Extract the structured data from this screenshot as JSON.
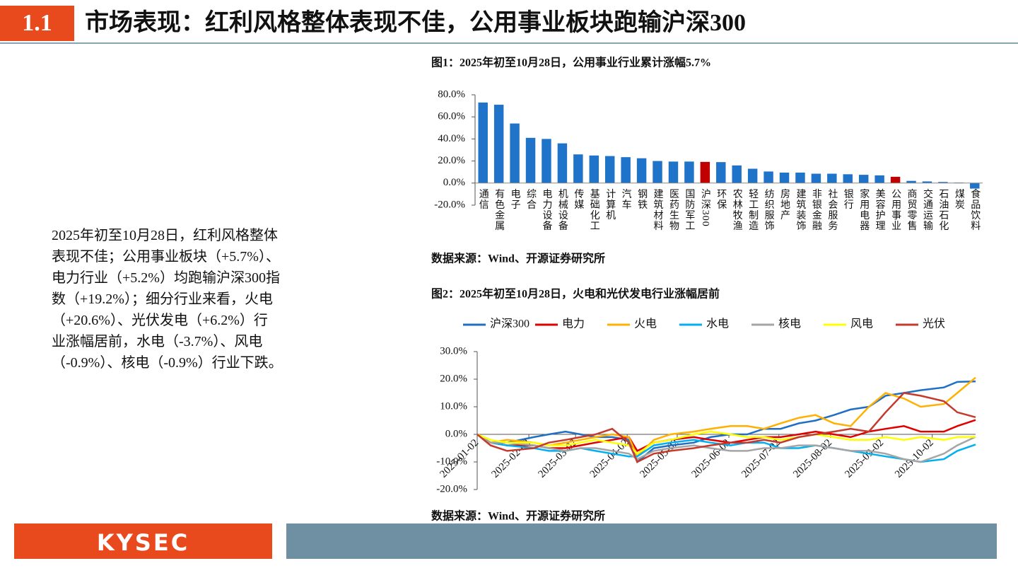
{
  "header": {
    "section": "1.1",
    "title": "市场表现：红利风格整体表现不佳，公用事业板块跑输沪深300"
  },
  "body_text": [
    "2025年初至10月28日，红利风格整体",
    "表现不佳；公用事业板块（+5.7%）、",
    "电力行业（+5.2%）均跑输沪深300指",
    "数（+19.2%）；细分行业来看，火电",
    "（+20.6%）、光伏发电（+6.2%）行",
    "业涨幅居前，水电（-3.7%）、风电",
    "（-0.9%）、核电（-0.9%）行业下跌。"
  ],
  "chart_data": [
    {
      "type": "bar",
      "title": "图1：2025年初至10月28日，公用事业行业累计涨幅5.7%",
      "source": "数据来源：Wind、开源证券研究所",
      "categories": [
        "通信",
        "有色金属",
        "电子",
        "综合",
        "电力设备",
        "机械设备",
        "传媒",
        "基础化工",
        "计算机",
        "汽车",
        "钢铁",
        "建筑材料",
        "医药生物",
        "国防军工",
        "沪深300",
        "环保",
        "农林牧渔",
        "轻工制造",
        "纺织服饰",
        "房地产",
        "建筑装饰",
        "非银金融",
        "社会服务",
        "银行",
        "家用电器",
        "美容护理",
        "公用事业",
        "商贸零售",
        "交通运输",
        "石油石化",
        "煤炭",
        "食品饮料"
      ],
      "values": [
        73,
        71,
        54,
        41,
        40,
        36,
        26,
        25,
        24.5,
        23.5,
        22.5,
        20,
        19.5,
        19.5,
        19.2,
        19,
        16,
        13,
        10.5,
        9.5,
        9.5,
        8.5,
        8.5,
        8,
        7.5,
        7,
        5.7,
        2,
        1.5,
        1,
        0.5,
        -5
      ],
      "colors": [
        "#1f74c9",
        "#1f74c9",
        "#1f74c9",
        "#1f74c9",
        "#1f74c9",
        "#1f74c9",
        "#1f74c9",
        "#1f74c9",
        "#1f74c9",
        "#1f74c9",
        "#1f74c9",
        "#1f74c9",
        "#1f74c9",
        "#1f74c9",
        "#c00000",
        "#1f74c9",
        "#1f74c9",
        "#1f74c9",
        "#1f74c9",
        "#1f74c9",
        "#1f74c9",
        "#1f74c9",
        "#1f74c9",
        "#1f74c9",
        "#1f74c9",
        "#1f74c9",
        "#c00000",
        "#1f74c9",
        "#1f74c9",
        "#1f74c9",
        "#1f74c9",
        "#1f74c9"
      ],
      "ylim": [
        -20,
        80
      ],
      "yticks": [
        {
          "value": -20,
          "label": "-20.0%"
        },
        {
          "value": 0,
          "label": "0.0%"
        },
        {
          "value": 20,
          "label": "20.0%"
        },
        {
          "value": 40,
          "label": "40.0%"
        },
        {
          "value": 60,
          "label": "60.0%"
        },
        {
          "value": 80,
          "label": "80.0%"
        }
      ]
    },
    {
      "type": "line",
      "title": "图2：2025年初至10月28日，火电和光伏发电行业涨幅居前",
      "source": "数据来源：Wind、开源证券研究所",
      "legend": "top",
      "x": [
        "2025-01-02",
        "2025-01-10",
        "2025-01-20",
        "2025-02-05",
        "2025-02-14",
        "2025-02-24",
        "2025-03-05",
        "2025-03-14",
        "2025-03-24",
        "2025-04-03",
        "2025-04-08",
        "2025-04-18",
        "2025-04-28",
        "2025-05-12",
        "2025-05-22",
        "2025-06-03",
        "2025-06-13",
        "2025-06-23",
        "2025-07-03",
        "2025-07-14",
        "2025-07-24",
        "2025-08-04",
        "2025-08-14",
        "2025-08-25",
        "2025-09-04",
        "2025-09-15",
        "2025-09-25",
        "2025-10-09",
        "2025-10-17",
        "2025-10-28"
      ],
      "xlim": [
        "2025-01-02",
        "2025-10-28"
      ],
      "xticks": [
        "2025-01-02",
        "2025-02-02",
        "2025-03-02",
        "2025-04-02",
        "2025-05-02",
        "2025-06-02",
        "2025-07-02",
        "2025-08-02",
        "2025-09-02",
        "2025-10-02"
      ],
      "ylim": [
        -20,
        30
      ],
      "yticks": [
        {
          "value": -20,
          "label": "-20.0%"
        },
        {
          "value": -10,
          "label": "-10.0%"
        },
        {
          "value": 0,
          "label": "0.0%"
        },
        {
          "value": 10,
          "label": "10.0%"
        },
        {
          "value": 20,
          "label": "20.0%"
        },
        {
          "value": 30,
          "label": "30.0%"
        }
      ],
      "series": [
        {
          "name": "沪深300",
          "color": "#1f6fc5",
          "values": [
            0,
            -3,
            -3,
            -1,
            0,
            1,
            0,
            -1,
            -1,
            -2,
            -10,
            -5,
            -4,
            -3,
            -1,
            0,
            0,
            2,
            2,
            4,
            5,
            7,
            9,
            10,
            14,
            15,
            16,
            17,
            19,
            19.2
          ]
        },
        {
          "name": "电力",
          "color": "#e00000",
          "values": [
            0,
            -3,
            -4,
            -4,
            -5,
            -5,
            -4,
            -3,
            -2,
            -1,
            -6,
            -3,
            -2,
            -1,
            -2,
            -3,
            -2,
            -1,
            -1,
            0,
            1,
            0,
            -1,
            1,
            2,
            3,
            1,
            1,
            3,
            5.2
          ]
        },
        {
          "name": "火电",
          "color": "#ffb000",
          "values": [
            0,
            -3,
            -2,
            -3,
            -4,
            -3,
            -2,
            -1,
            0,
            -1,
            -8,
            -2,
            0,
            1,
            2,
            3,
            3,
            2,
            4,
            6,
            7,
            4,
            3,
            10,
            15,
            13,
            10,
            11,
            15,
            20.6
          ]
        },
        {
          "name": "水电",
          "color": "#00b0f0",
          "values": [
            0,
            -3,
            -4,
            -5,
            -6,
            -6,
            -5,
            -6,
            -7,
            -8,
            -8,
            -4,
            -3,
            -2,
            -3,
            -4,
            -3,
            -3,
            -5,
            -5,
            -4,
            -5,
            -6,
            -7,
            -8,
            -9,
            -10,
            -9,
            -6,
            -3.7
          ]
        },
        {
          "name": "核电",
          "color": "#a5a5a5",
          "values": [
            0,
            -3,
            -3,
            -4,
            -5,
            -6,
            -5,
            -5,
            -6,
            -7,
            -9,
            -6,
            -5,
            -4,
            -5,
            -6,
            -6,
            -5,
            -5,
            -4,
            -4,
            -5,
            -6,
            -6,
            -7,
            -9,
            -10,
            -7,
            -4,
            -0.9
          ]
        },
        {
          "name": "风电",
          "color": "#ffff00",
          "values": [
            0,
            -2,
            -3,
            -3,
            -4,
            -4,
            -3,
            -2,
            -3,
            -4,
            -7,
            -3,
            -2,
            0,
            1,
            0,
            -1,
            -1,
            -2,
            -1,
            0,
            -1,
            -2,
            -2,
            -1,
            -2,
            -1,
            -2,
            -1,
            -0.9
          ]
        },
        {
          "name": "光伏",
          "color": "#c43a2c",
          "values": [
            0,
            -4,
            -6,
            -5,
            -3,
            -2,
            -1,
            0,
            2,
            -3,
            -10,
            -7,
            -6,
            -5,
            -4,
            -3,
            -3,
            -2,
            -3,
            -1,
            0,
            1,
            2,
            1,
            8,
            15,
            14,
            12,
            8,
            6.2
          ]
        }
      ]
    }
  ],
  "footer": {
    "logo": "KYSEC"
  }
}
